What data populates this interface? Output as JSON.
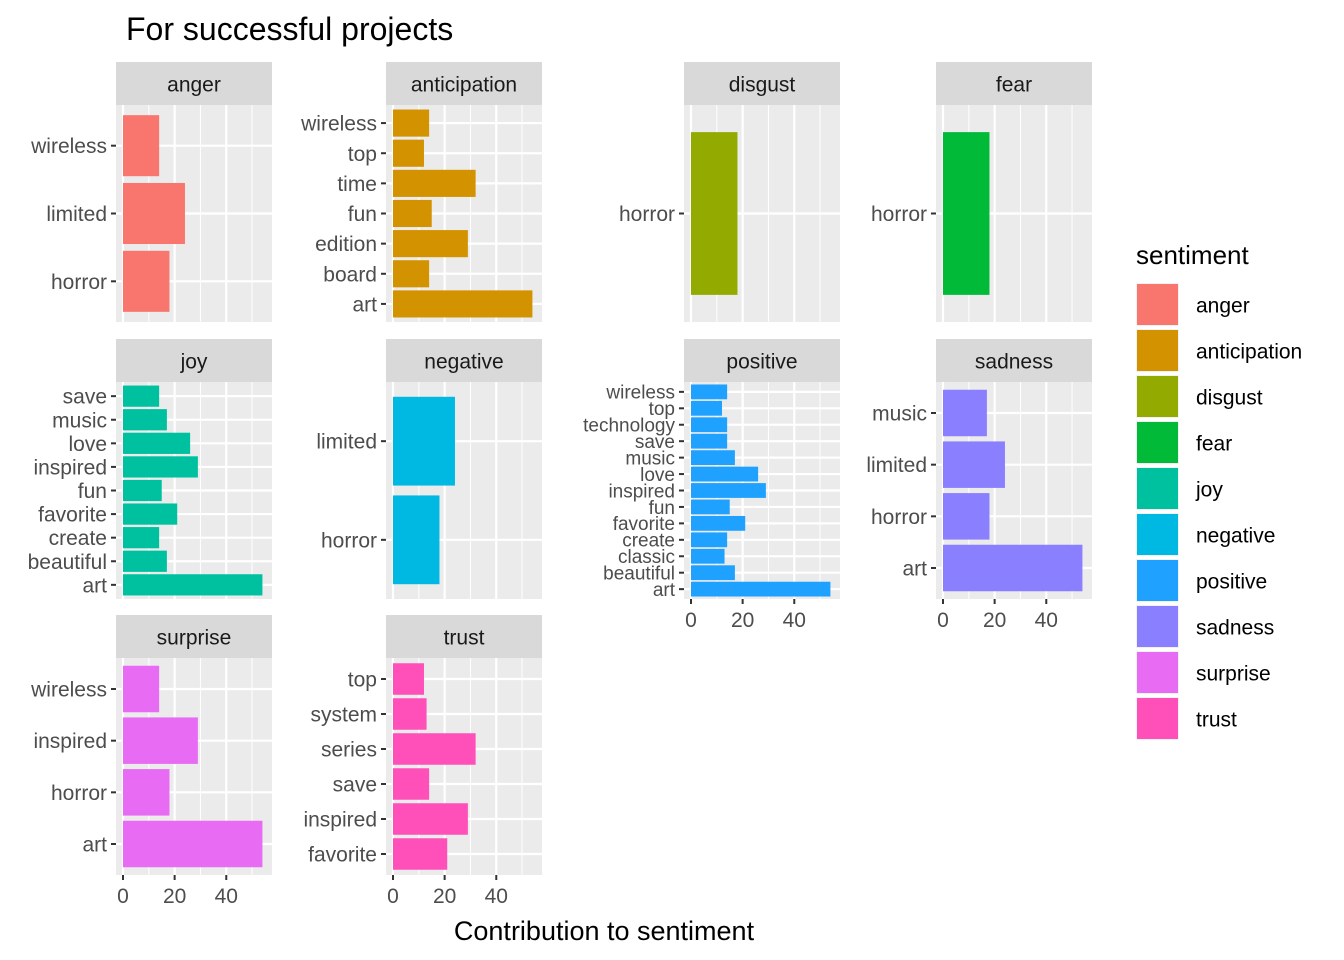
{
  "chart_data": {
    "type": "bar",
    "orientation": "horizontal",
    "title": "For successful projects",
    "xlabel": "Contribution to sentiment",
    "ylabel": "",
    "xlim": [
      0,
      55
    ],
    "x_ticks": [
      0,
      20,
      40
    ],
    "legend": {
      "title": "sentiment",
      "placement": "right",
      "entries": [
        {
          "label": "anger",
          "color": "#F8766D"
        },
        {
          "label": "anticipation",
          "color": "#D39200"
        },
        {
          "label": "disgust",
          "color": "#93AA00"
        },
        {
          "label": "fear",
          "color": "#00BA38"
        },
        {
          "label": "joy",
          "color": "#00C19F"
        },
        {
          "label": "negative",
          "color": "#00B9E3"
        },
        {
          "label": "positive",
          "color": "#1FA2FF"
        },
        {
          "label": "sadness",
          "color": "#8A80FF"
        },
        {
          "label": "surprise",
          "color": "#E76BF3"
        },
        {
          "label": "trust",
          "color": "#FF4FB8"
        }
      ]
    },
    "panels": [
      {
        "strip": "anger",
        "color": "#F8766D",
        "categories": [
          "wireless",
          "limited",
          "horror"
        ],
        "values": [
          14,
          24,
          18
        ]
      },
      {
        "strip": "anticipation",
        "color": "#D39200",
        "categories": [
          "wireless",
          "top",
          "time",
          "fun",
          "edition",
          "board",
          "art"
        ],
        "values": [
          14,
          12,
          32,
          15,
          29,
          14,
          54
        ]
      },
      {
        "strip": "disgust",
        "color": "#93AA00",
        "categories": [
          "horror"
        ],
        "values": [
          18
        ]
      },
      {
        "strip": "fear",
        "color": "#00BA38",
        "categories": [
          "horror"
        ],
        "values": [
          18
        ]
      },
      {
        "strip": "joy",
        "color": "#00C19F",
        "categories": [
          "save",
          "music",
          "love",
          "inspired",
          "fun",
          "favorite",
          "create",
          "beautiful",
          "art"
        ],
        "values": [
          14,
          17,
          26,
          29,
          15,
          21,
          14,
          17,
          54
        ]
      },
      {
        "strip": "negative",
        "color": "#00B9E3",
        "categories": [
          "limited",
          "horror"
        ],
        "values": [
          24,
          18
        ]
      },
      {
        "strip": "positive",
        "color": "#1FA2FF",
        "categories": [
          "wireless",
          "top",
          "technology",
          "save",
          "music",
          "love",
          "inspired",
          "fun",
          "favorite",
          "create",
          "classic",
          "beautiful",
          "art"
        ],
        "values": [
          14,
          12,
          14,
          14,
          17,
          26,
          29,
          15,
          21,
          14,
          13,
          17,
          54
        ]
      },
      {
        "strip": "sadness",
        "color": "#8A80FF",
        "categories": [
          "music",
          "limited",
          "horror",
          "art"
        ],
        "values": [
          17,
          24,
          18,
          54
        ]
      },
      {
        "strip": "surprise",
        "color": "#E76BF3",
        "categories": [
          "wireless",
          "inspired",
          "horror",
          "art"
        ],
        "values": [
          14,
          29,
          18,
          54
        ]
      },
      {
        "strip": "trust",
        "color": "#FF4FB8",
        "categories": [
          "top",
          "system",
          "series",
          "save",
          "inspired",
          "favorite"
        ],
        "values": [
          12,
          13,
          32,
          14,
          29,
          21
        ]
      }
    ]
  }
}
